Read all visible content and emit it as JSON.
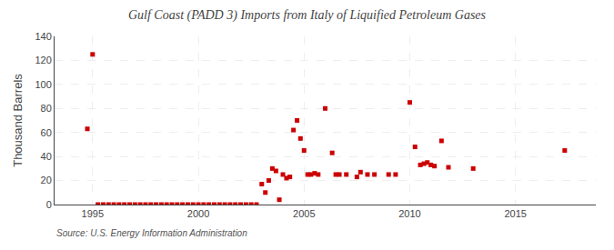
{
  "chart_data": {
    "type": "scatter",
    "title": "Gulf Coast (PADD 3) Imports from Italy of Liquified Petroleum Gases",
    "ylabel": "Thousand Barrels",
    "annotations": [
      "Source: U.S. Energy Information Administration"
    ],
    "color": "#cc0000",
    "marker": "square",
    "grid": true,
    "xlim": [
      1993.2,
      2018.8
    ],
    "ylim": [
      0,
      140
    ],
    "xticks": [
      1995,
      2000,
      2005,
      2010,
      2015
    ],
    "yticks": [
      0,
      20,
      40,
      60,
      80,
      100,
      120,
      140
    ],
    "x": [
      1994.75,
      1995.0,
      1995.25,
      1995.5,
      1995.75,
      1996.0,
      1996.25,
      1996.5,
      1996.75,
      1997.0,
      1997.25,
      1997.5,
      1997.75,
      1998.0,
      1998.25,
      1998.5,
      1998.75,
      1999.0,
      1999.25,
      1999.5,
      1999.75,
      2000.0,
      2000.25,
      2000.5,
      2000.75,
      2001.0,
      2001.25,
      2001.5,
      2001.75,
      2002.0,
      2002.25,
      2002.5,
      2002.75,
      2003.0,
      2003.17,
      2003.33,
      2003.5,
      2003.67,
      2003.83,
      2004.0,
      2004.17,
      2004.33,
      2004.5,
      2004.67,
      2004.83,
      2005.0,
      2005.17,
      2005.33,
      2005.5,
      2005.67,
      2006.0,
      2006.33,
      2006.5,
      2006.67,
      2007.0,
      2007.5,
      2007.67,
      2008.0,
      2008.33,
      2009.0,
      2009.33,
      2010.0,
      2010.25,
      2010.5,
      2010.67,
      2010.83,
      2011.0,
      2011.17,
      2011.5,
      2011.83,
      2013.0,
      2017.33
    ],
    "values": [
      63,
      125,
      0,
      0,
      0,
      0,
      0,
      0,
      0,
      0,
      0,
      0,
      0,
      0,
      0,
      0,
      0,
      0,
      0,
      0,
      0,
      0,
      0,
      0,
      0,
      0,
      0,
      0,
      0,
      0,
      0,
      0,
      0,
      17,
      10,
      20,
      30,
      28,
      4,
      25,
      22,
      23,
      62,
      70,
      55,
      45,
      25,
      25,
      26,
      25,
      80,
      43,
      25,
      25,
      25,
      23,
      27,
      25,
      25,
      25,
      25,
      85,
      48,
      33,
      34,
      35,
      33,
      32,
      53,
      31,
      30,
      45
    ]
  }
}
